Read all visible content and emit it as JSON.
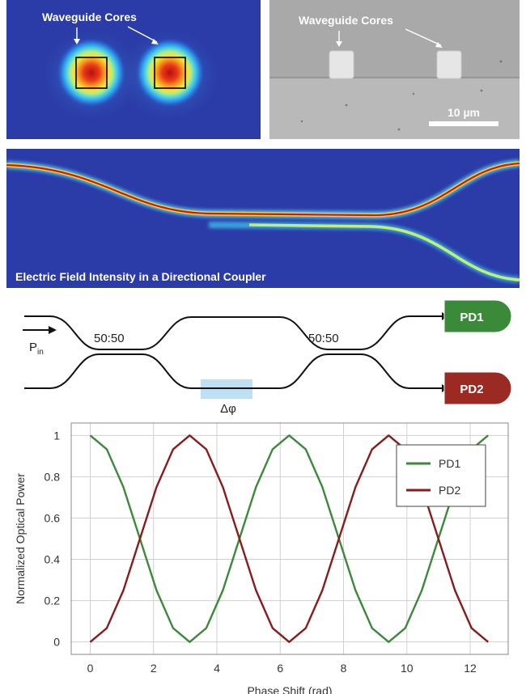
{
  "sim_panel": {
    "label": "Waveguide Cores"
  },
  "sem_panel": {
    "label": "Waveguide Cores",
    "scale_bar": "10 µm"
  },
  "coupler_panel": {
    "caption": "Electric Field Intensity in a Directional Coupler"
  },
  "diagram": {
    "input_label": "P",
    "input_subscript": "in",
    "coupler1_ratio": "50:50",
    "coupler2_ratio": "50:50",
    "phase_label": "Δφ",
    "pd1_label": "PD1",
    "pd2_label": "PD2",
    "pd1_color": "#3a8a3a",
    "pd2_color": "#9b2a22",
    "phase_box_color": "#bfe0f3"
  },
  "chart_data": {
    "type": "line",
    "title": "",
    "xlabel": "Phase Shift (rad)",
    "ylabel": "Normalized Optical Power",
    "xlim": [
      -0.6,
      13.2
    ],
    "ylim": [
      -0.06,
      1.06
    ],
    "xticks": [
      0,
      2,
      4,
      6,
      8,
      10,
      12
    ],
    "yticks": [
      0,
      0.2,
      0.4,
      0.6,
      0.8,
      1
    ],
    "grid": true,
    "legend_position": "top-right",
    "x": [
      0,
      0.5236,
      1.0472,
      1.5708,
      2.0944,
      2.618,
      3.1416,
      3.6652,
      4.1888,
      4.7124,
      5.236,
      5.7596,
      6.2832,
      6.8068,
      7.3304,
      7.854,
      8.3776,
      8.9012,
      9.4248,
      9.9484,
      10.472,
      10.9956,
      11.5192,
      12.0428,
      12.5664
    ],
    "series": [
      {
        "name": "PD1",
        "color": "#3a8a3a",
        "values": [
          1,
          0.933,
          0.75,
          0.5,
          0.25,
          0.067,
          0,
          0.067,
          0.25,
          0.5,
          0.75,
          0.933,
          1,
          0.933,
          0.75,
          0.5,
          0.25,
          0.067,
          0,
          0.067,
          0.25,
          0.5,
          0.75,
          0.933,
          1
        ]
      },
      {
        "name": "PD2",
        "color": "#8b1a1a",
        "values": [
          0,
          0.067,
          0.25,
          0.5,
          0.75,
          0.933,
          1,
          0.933,
          0.75,
          0.5,
          0.25,
          0.067,
          0,
          0.067,
          0.25,
          0.5,
          0.75,
          0.933,
          1,
          0.933,
          0.75,
          0.5,
          0.25,
          0.067,
          0
        ]
      }
    ]
  }
}
